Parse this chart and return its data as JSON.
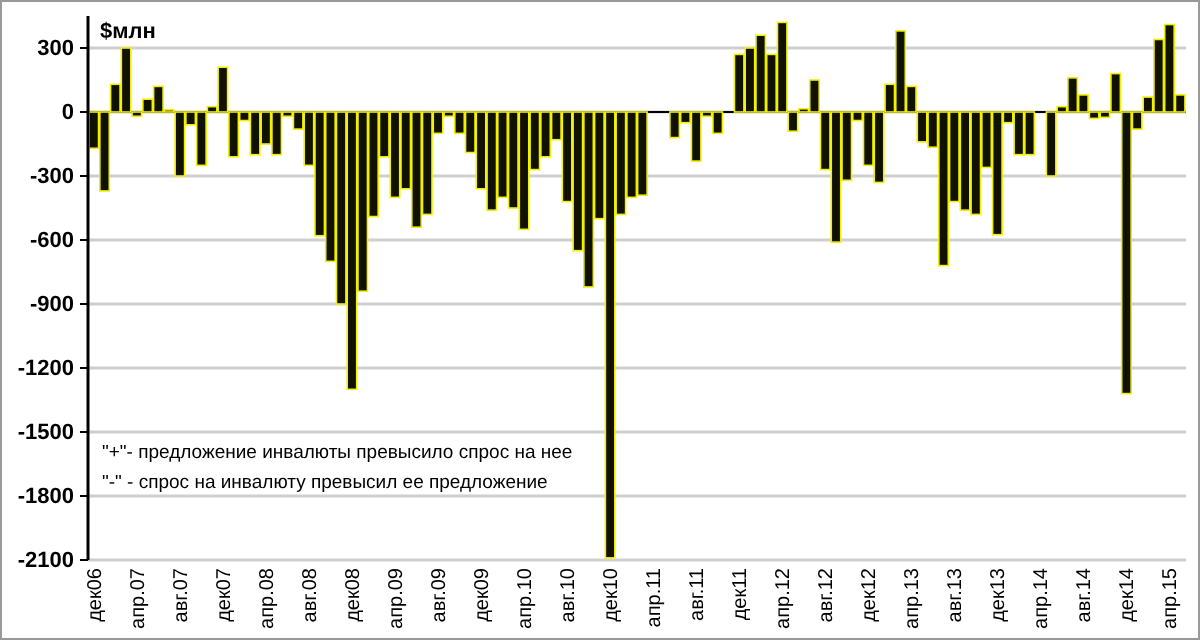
{
  "chart_data": {
    "type": "bar",
    "ylabel": "$млн",
    "categories": [
      "дек06",
      null,
      null,
      null,
      "апр.07",
      null,
      null,
      null,
      "авг.07",
      null,
      null,
      null,
      "дек07",
      null,
      null,
      null,
      "апр.08",
      null,
      null,
      null,
      "авг.08",
      null,
      null,
      null,
      "дек08",
      null,
      null,
      null,
      "апр.09",
      null,
      null,
      null,
      "авг.09",
      null,
      null,
      null,
      "дек09",
      null,
      null,
      null,
      "апр.10",
      null,
      null,
      null,
      "авг.10",
      null,
      null,
      null,
      "дек10",
      null,
      null,
      null,
      "апр.11",
      null,
      null,
      null,
      "авг.11",
      null,
      null,
      null,
      "дек11",
      null,
      null,
      null,
      "апр.12",
      null,
      null,
      null,
      "авг.12",
      null,
      null,
      null,
      "дек12",
      null,
      null,
      null,
      "апр.13",
      null,
      null,
      null,
      "авг.13",
      null,
      null,
      null,
      "дек13",
      null,
      null,
      null,
      "апр.14",
      null,
      null,
      null,
      "авг.14",
      null,
      null,
      null,
      "дек14",
      null,
      null,
      null,
      "апр.15",
      null
    ],
    "values": [
      -170,
      -370,
      130,
      300,
      -20,
      60,
      120,
      10,
      -300,
      -60,
      -250,
      25,
      210,
      -210,
      -40,
      -200,
      -150,
      -200,
      -20,
      -80,
      -250,
      -580,
      -700,
      -900,
      -1300,
      -840,
      -490,
      -210,
      -400,
      -360,
      -540,
      -480,
      -100,
      -20,
      -100,
      -190,
      -360,
      -460,
      -400,
      -450,
      -550,
      -270,
      -210,
      -130,
      -420,
      -650,
      -820,
      -500,
      -2090,
      -480,
      -400,
      -390,
      0,
      0,
      -120,
      -50,
      -230,
      -20,
      -100,
      0,
      270,
      300,
      360,
      270,
      420,
      -90,
      15,
      150,
      -270,
      -610,
      -320,
      -40,
      -250,
      -330,
      130,
      380,
      120,
      -140,
      -165,
      -720,
      -420,
      -460,
      -480,
      -260,
      -575,
      -50,
      -200,
      -200,
      0,
      -300,
      25,
      160,
      80,
      -30,
      -25,
      180,
      -1320,
      -80,
      70,
      340,
      410,
      80
    ],
    "color": "#111100",
    "ylim": [
      -2100,
      450
    ],
    "yticks": [
      300,
      0,
      -300,
      -600,
      -900,
      -1200,
      -1500,
      -1800,
      -2100
    ],
    "grid": "y",
    "annotations": [
      "\"+\"- предложение инвалюты превысило спрос на нее",
      "\"-\" - спрос на инвалюту превысил ее предложение"
    ]
  }
}
